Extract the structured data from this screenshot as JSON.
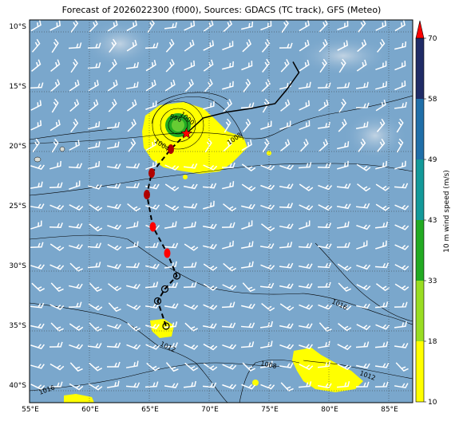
{
  "title": "Forecast of 2026022300 (f000), Sources: GDACS (TC track), GFS (Meteo)",
  "map": {
    "lon_range": [
      55,
      87
    ],
    "lat_range": [
      -41,
      -9
    ],
    "lon_ticks": [
      "55°E",
      "60°E",
      "65°E",
      "70°E",
      "75°E",
      "80°E",
      "85°E"
    ],
    "lat_ticks": [
      "10°S",
      "15°S",
      "20°S",
      "25°S",
      "30°S",
      "35°S",
      "40°S"
    ],
    "ocean_color": "#7aa7cc",
    "land_color": "#d8dcd6"
  },
  "pressure_labels": [
    "1016",
    "1012",
    "1008",
    "1004",
    "1000",
    "996",
    "1016",
    "1008",
    "1012"
  ],
  "track": {
    "color": "#000000",
    "current_marker": "red-star",
    "points": [
      {
        "lon": 68.1,
        "lat": -18.5
      },
      {
        "lon": 66.8,
        "lat": -19.8
      },
      {
        "lon": 65.2,
        "lat": -21.8
      },
      {
        "lon": 64.8,
        "lat": -23.6
      },
      {
        "lon": 65.3,
        "lat": -26.3
      },
      {
        "lon": 66.5,
        "lat": -28.5
      },
      {
        "lon": 67.3,
        "lat": -30.4
      },
      {
        "lon": 66.3,
        "lat": -31.5
      },
      {
        "lon": 65.7,
        "lat": -32.5
      },
      {
        "lon": 66.4,
        "lat": -34.6
      }
    ],
    "past_path": [
      {
        "lon": 68.1,
        "lat": -18.5
      },
      {
        "lon": 69.5,
        "lat": -17.2
      },
      {
        "lon": 71.5,
        "lat": -16.7
      },
      {
        "lon": 73.5,
        "lat": -16.4
      },
      {
        "lon": 75.5,
        "lat": -16.0
      },
      {
        "lon": 76.5,
        "lat": -14.8
      },
      {
        "lon": 77.5,
        "lat": -13.4
      },
      {
        "lon": 77.0,
        "lat": -12.5
      }
    ]
  },
  "colorbar": {
    "label": "10 m wind speed (m/s)",
    "ticks": [
      "10",
      "18",
      "33",
      "43",
      "49",
      "58",
      "70"
    ],
    "colors": [
      "#ffff00",
      "#99dd22",
      "#22aa22",
      "#139999",
      "#1f6ea8",
      "#1f2b66"
    ],
    "extend_color": "#ff0000"
  }
}
